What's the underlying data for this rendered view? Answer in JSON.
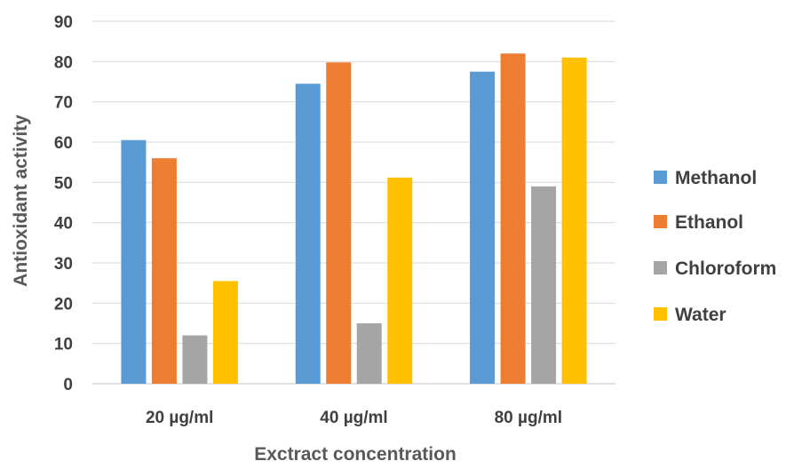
{
  "chart_data": {
    "type": "bar",
    "title": "",
    "xlabel": "Exctract concentration",
    "ylabel": "Antioxidant activity",
    "categories": [
      "20 µg/ml",
      "40 µg/ml",
      "80 µg/ml"
    ],
    "series": [
      {
        "name": "Methanol",
        "color": "#5B9BD5",
        "values": [
          60.5,
          74.5,
          77.5
        ]
      },
      {
        "name": "Ethanol",
        "color": "#ED7D31",
        "values": [
          56,
          79.8,
          82
        ]
      },
      {
        "name": "Chloroform",
        "color": "#A5A5A5",
        "values": [
          12,
          15,
          49
        ]
      },
      {
        "name": "Water",
        "color": "#FFC000",
        "values": [
          25.5,
          51.2,
          81
        ]
      }
    ],
    "yticks": [
      0,
      10,
      20,
      30,
      40,
      50,
      60,
      70,
      80,
      90
    ],
    "ylim": [
      0,
      90
    ],
    "grid": true,
    "legend_position": "right"
  }
}
